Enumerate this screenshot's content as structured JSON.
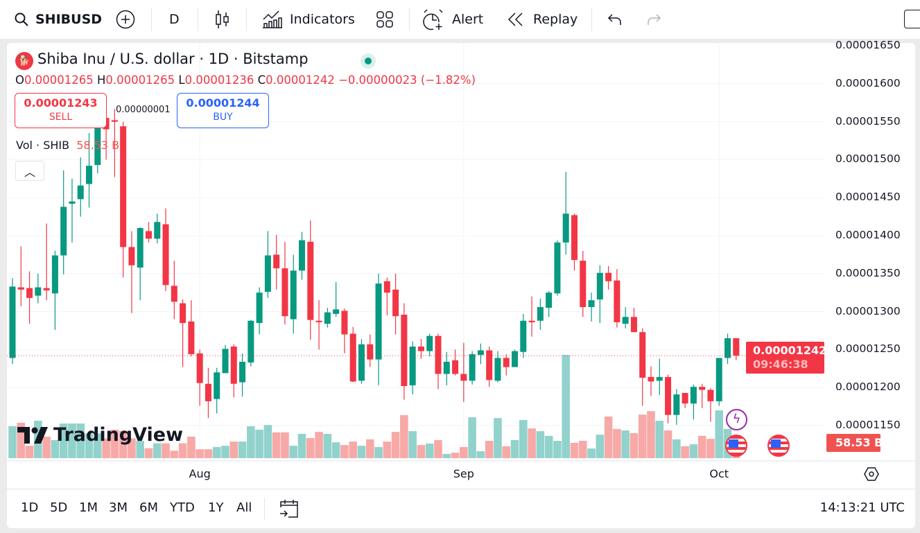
{
  "toolbar": {
    "symbol": "SHIBUSD",
    "interval": "D",
    "indicators_label": "Indicators",
    "alert_label": "Alert",
    "replay_label": "Replay"
  },
  "legend": {
    "title": "Shiba Inu / U.S. dollar · 1D · Bitstamp",
    "o_label": "O",
    "open": "0.00001265",
    "h_label": "H",
    "high": "0.00001265",
    "l_label": "L",
    "low": "0.00001236",
    "c_label": "C",
    "close": "0.00001242",
    "change": "−0.00000023 (−1.82%)",
    "sell_price": "0.00001243",
    "sell_label": "SELL",
    "buy_price": "0.00001244",
    "buy_label": "BUY",
    "spread": "0.00000001",
    "vol_label": "Vol · SHIB",
    "vol_value": "58.53 B"
  },
  "price_axis": {
    "ticks": [
      "0.00001650",
      "0.00001600",
      "0.00001550",
      "0.00001500",
      "0.00001450",
      "0.00001400",
      "0.00001350",
      "0.00001300",
      "0.00001250",
      "0.00001200",
      "0.00001150"
    ],
    "last_price": "0.00001242",
    "countdown": "09:46:38",
    "last_volume": "58.53 B"
  },
  "logo_text": "TradingView",
  "time_axis": {
    "ticks": [
      "Aug",
      "Sep",
      "Oct"
    ]
  },
  "bottom": {
    "ranges": [
      "1D",
      "5D",
      "1M",
      "3M",
      "6M",
      "YTD",
      "1Y",
      "All"
    ],
    "clock": "14:13:21 UTC"
  },
  "colors": {
    "up": "#089981",
    "down": "#f23645",
    "vol_up": "#92d2cc",
    "vol_down": "#f7a9a7"
  },
  "chart_data": {
    "type": "candlestick",
    "title": "Shiba Inu / U.S. dollar · 1D · Bitstamp",
    "ylim": [
      1.15e-05,
      1.65e-05
    ],
    "x_ticks": [
      "Aug",
      "Sep",
      "Oct"
    ],
    "ohlc": [
      [
        1.239e-05,
        1.344e-05,
        1.231e-05,
        1.333e-05
      ],
      [
        1.332e-05,
        1.386e-05,
        1.307e-05,
        1.329e-05
      ],
      [
        1.331e-05,
        1.353e-05,
        1.284e-05,
        1.318e-05
      ],
      [
        1.321e-05,
        1.35e-05,
        1.311e-05,
        1.332e-05
      ],
      [
        1.331e-05,
        1.416e-05,
        1.315e-05,
        1.328e-05
      ],
      [
        1.324e-05,
        1.38e-05,
        1.276e-05,
        1.374e-05
      ],
      [
        1.374e-05,
        1.486e-05,
        1.349e-05,
        1.438e-05
      ],
      [
        1.442e-05,
        1.475e-05,
        1.391e-05,
        1.445e-05
      ],
      [
        1.448e-05,
        1.503e-05,
        1.425e-05,
        1.466e-05
      ],
      [
        1.468e-05,
        1.535e-05,
        1.437e-05,
        1.492e-05
      ],
      [
        1.493e-05,
        1.56e-05,
        1.482e-05,
        1.543e-05
      ],
      [
        1.555e-05,
        1.57e-05,
        1.5e-05,
        1.54e-05
      ],
      [
        1.552e-05,
        1.567e-05,
        1.477e-05,
        1.55e-05
      ],
      [
        1.544e-05,
        1.55e-05,
        1.345e-05,
        1.385e-05
      ],
      [
        1.385e-05,
        1.406e-05,
        1.298e-05,
        1.361e-05
      ],
      [
        1.358e-05,
        1.411e-05,
        1.315e-05,
        1.41e-05
      ],
      [
        1.406e-05,
        1.418e-05,
        1.391e-05,
        1.396e-05
      ],
      [
        1.396e-05,
        1.429e-05,
        1.39e-05,
        1.418e-05
      ],
      [
        1.415e-05,
        1.436e-05,
        1.327e-05,
        1.335e-05
      ],
      [
        1.334e-05,
        1.367e-05,
        1.29e-05,
        1.313e-05
      ],
      [
        1.311e-05,
        1.316e-05,
        1.227e-05,
        1.285e-05
      ],
      [
        1.287e-05,
        1.315e-05,
        1.241e-05,
        1.244e-05
      ],
      [
        1.245e-05,
        1.25e-05,
        1.176e-05,
        1.206e-05
      ],
      [
        1.205e-05,
        1.226e-05,
        1.16e-05,
        1.182e-05
      ],
      [
        1.185e-05,
        1.226e-05,
        1.166e-05,
        1.22e-05
      ],
      [
        1.219e-05,
        1.256e-05,
        1.219e-05,
        1.251e-05
      ],
      [
        1.254e-05,
        1.257e-05,
        1.187e-05,
        1.205e-05
      ],
      [
        1.207e-05,
        1.245e-05,
        1.188e-05,
        1.234e-05
      ],
      [
        1.233e-05,
        1.289e-05,
        1.228e-05,
        1.288e-05
      ],
      [
        1.285e-05,
        1.332e-05,
        1.27e-05,
        1.325e-05
      ],
      [
        1.326e-05,
        1.406e-05,
        1.318e-05,
        1.374e-05
      ],
      [
        1.375e-05,
        1.401e-05,
        1.329e-05,
        1.357e-05
      ],
      [
        1.357e-05,
        1.392e-05,
        1.283e-05,
        1.294e-05
      ],
      [
        1.29e-05,
        1.375e-05,
        1.271e-05,
        1.354e-05
      ],
      [
        1.354e-05,
        1.405e-05,
        1.342e-05,
        1.394e-05
      ],
      [
        1.392e-05,
        1.42e-05,
        1.263e-05,
        1.289e-05
      ],
      [
        1.288e-05,
        1.315e-05,
        1.25e-05,
        1.286e-05
      ],
      [
        1.284e-05,
        1.305e-05,
        1.279e-05,
        1.299e-05
      ],
      [
        1.297e-05,
        1.339e-05,
        1.293e-05,
        1.303e-05
      ],
      [
        1.301e-05,
        1.304e-05,
        1.245e-05,
        1.27e-05
      ],
      [
        1.271e-05,
        1.28e-05,
        1.207e-05,
        1.208e-05
      ],
      [
        1.209e-05,
        1.264e-05,
        1.205e-05,
        1.257e-05
      ],
      [
        1.257e-05,
        1.27e-05,
        1.227e-05,
        1.237e-05
      ],
      [
        1.237e-05,
        1.35e-05,
        1.203e-05,
        1.337e-05
      ],
      [
        1.34e-05,
        1.345e-05,
        1.295e-05,
        1.325e-05
      ],
      [
        1.329e-05,
        1.35e-05,
        1.27e-05,
        1.294e-05
      ],
      [
        1.296e-05,
        1.311e-05,
        1.184e-05,
        1.202e-05
      ],
      [
        1.203e-05,
        1.261e-05,
        1.191e-05,
        1.254e-05
      ],
      [
        1.254e-05,
        1.264e-05,
        1.238e-05,
        1.248e-05
      ],
      [
        1.248e-05,
        1.271e-05,
        1.241e-05,
        1.268e-05
      ],
      [
        1.268e-05,
        1.271e-05,
        1.198e-05,
        1.218e-05
      ],
      [
        1.218e-05,
        1.247e-05,
        1.203e-05,
        1.234e-05
      ],
      [
        1.236e-05,
        1.25e-05,
        1.216e-05,
        1.218e-05
      ],
      [
        1.218e-05,
        1.259e-05,
        1.181e-05,
        1.209e-05
      ],
      [
        1.209e-05,
        1.248e-05,
        1.204e-05,
        1.244e-05
      ],
      [
        1.243e-05,
        1.258e-05,
        1.231e-05,
        1.249e-05
      ],
      [
        1.249e-05,
        1.254e-05,
        1.201e-05,
        1.21e-05
      ],
      [
        1.209e-05,
        1.248e-05,
        1.207e-05,
        1.239e-05
      ],
      [
        1.239e-05,
        1.244e-05,
        1.216e-05,
        1.227e-05
      ],
      [
        1.227e-05,
        1.25e-05,
        1.227e-05,
        1.248e-05
      ],
      [
        1.247e-05,
        1.297e-05,
        1.239e-05,
        1.288e-05
      ],
      [
        1.288e-05,
        1.32e-05,
        1.267e-05,
        1.286e-05
      ],
      [
        1.288e-05,
        1.317e-05,
        1.276e-05,
        1.306e-05
      ],
      [
        1.305e-05,
        1.327e-05,
        1.293e-05,
        1.325e-05
      ],
      [
        1.324e-05,
        1.394e-05,
        1.321e-05,
        1.391e-05
      ],
      [
        1.391e-05,
        1.484e-05,
        1.375e-05,
        1.429e-05
      ],
      [
        1.427e-05,
        1.429e-05,
        1.354e-05,
        1.368e-05
      ],
      [
        1.367e-05,
        1.38e-05,
        1.293e-05,
        1.306e-05
      ],
      [
        1.306e-05,
        1.325e-05,
        1.287e-05,
        1.315e-05
      ],
      [
        1.316e-05,
        1.361e-05,
        1.285e-05,
        1.351e-05
      ],
      [
        1.351e-05,
        1.36e-05,
        1.329e-05,
        1.34e-05
      ],
      [
        1.341e-05,
        1.356e-05,
        1.279e-05,
        1.286e-05
      ],
      [
        1.284e-05,
        1.306e-05,
        1.278e-05,
        1.293e-05
      ],
      [
        1.293e-05,
        1.305e-05,
        1.273e-05,
        1.273e-05
      ],
      [
        1.273e-05,
        1.278e-05,
        1.176e-05,
        1.213e-05
      ],
      [
        1.214e-05,
        1.228e-05,
        1.189e-05,
        1.208e-05
      ],
      [
        1.209e-05,
        1.238e-05,
        1.19e-05,
        1.214e-05
      ],
      [
        1.214e-05,
        1.217e-05,
        1.153e-05,
        1.164e-05
      ],
      [
        1.164e-05,
        1.198e-05,
        1.151e-05,
        1.191e-05
      ],
      [
        1.193e-05,
        1.193e-05,
        1.173e-05,
        1.179e-05
      ],
      [
        1.179e-05,
        1.204e-05,
        1.158e-05,
        1.201e-05
      ],
      [
        1.201e-05,
        1.205e-05,
        1.173e-05,
        1.197e-05
      ],
      [
        1.197e-05,
        1.199e-05,
        1.155e-05,
        1.182e-05
      ],
      [
        1.182e-05,
        1.239e-05,
        1.176e-05,
        1.239e-05
      ],
      [
        1.239e-05,
        1.271e-05,
        1.231e-05,
        1.265e-05
      ],
      [
        1.265e-05,
        1.265e-05,
        1.236e-05,
        1.242e-05
      ]
    ],
    "volume_billions": [
      129,
      143,
      50,
      151,
      87,
      73,
      140,
      140,
      140,
      100,
      100,
      80,
      115,
      110,
      80,
      70,
      40,
      60,
      60,
      30,
      60,
      87,
      36,
      36,
      45,
      50,
      67,
      67,
      129,
      115,
      134,
      104,
      104,
      50,
      98,
      81,
      106,
      98,
      64,
      53,
      67,
      50,
      76,
      45,
      67,
      106,
      174,
      109,
      53,
      59,
      73,
      17,
      22,
      45,
      165,
      28,
      70,
      162,
      48,
      73,
      154,
      120,
      109,
      90,
      70,
      417,
      62,
      70,
      39,
      95,
      168,
      118,
      112,
      101,
      176,
      190,
      151,
      112,
      76,
      48,
      56,
      90,
      78,
      193,
      118,
      58.53
    ],
    "x_tick_index": [
      22,
      53,
      83
    ],
    "last_price": 1.242e-05,
    "grid": true
  }
}
